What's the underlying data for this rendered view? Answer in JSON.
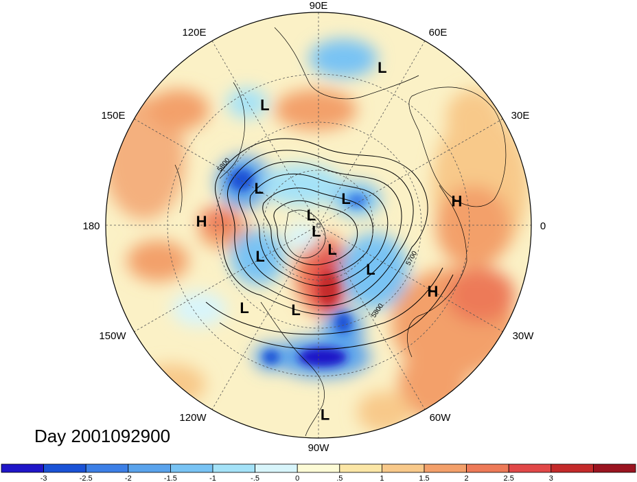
{
  "title": "Day 2001092900",
  "longitude_labels": [
    "90E",
    "60E",
    "30E",
    "0",
    "30W",
    "60W",
    "90W",
    "120W",
    "150W",
    "180",
    "150E",
    "120E"
  ],
  "contour_labels": [
    "5800",
    "5700",
    "5800"
  ],
  "pressure_centers": [
    {
      "label": "L",
      "lon": 68,
      "r": 0.8
    },
    {
      "label": "L",
      "lon": 114,
      "r": 0.62
    },
    {
      "label": "L",
      "lon": 148,
      "r": 0.33
    },
    {
      "label": "L",
      "lon": 125,
      "r": 0.06
    },
    {
      "label": "L",
      "lon": 44,
      "r": 0.18
    },
    {
      "label": "H",
      "lon": 178,
      "r": 0.55
    },
    {
      "label": "H",
      "lon": 10,
      "r": 0.66
    },
    {
      "label": "L",
      "lon": -110,
      "r": 0.03
    },
    {
      "label": "L",
      "lon": -152,
      "r": 0.31
    },
    {
      "label": "L",
      "lon": -60,
      "r": 0.13
    },
    {
      "label": "L",
      "lon": -40,
      "r": 0.32
    },
    {
      "label": "H",
      "lon": -30,
      "r": 0.62
    },
    {
      "label": "L",
      "lon": -105,
      "r": 0.41
    },
    {
      "label": "L",
      "lon": -132,
      "r": 0.52
    },
    {
      "label": "L",
      "lon": -88,
      "r": 0.89
    }
  ],
  "colorbar": {
    "colors": [
      "#1f16c8",
      "#1a52d6",
      "#3c7fe6",
      "#5aa3ec",
      "#78c3f4",
      "#a4e2f8",
      "#d8f5fb",
      "#fdfbd6",
      "#fbe6a6",
      "#f8c98a",
      "#f3a06a",
      "#ed7a58",
      "#e14848",
      "#c42a2a",
      "#9a1420"
    ],
    "tick_labels": [
      "-3",
      "-2.5",
      "-2",
      "-1.5",
      "-1",
      "-.5",
      "0",
      ".5",
      "1",
      "1.5",
      "2",
      "2.5",
      "3"
    ]
  }
}
